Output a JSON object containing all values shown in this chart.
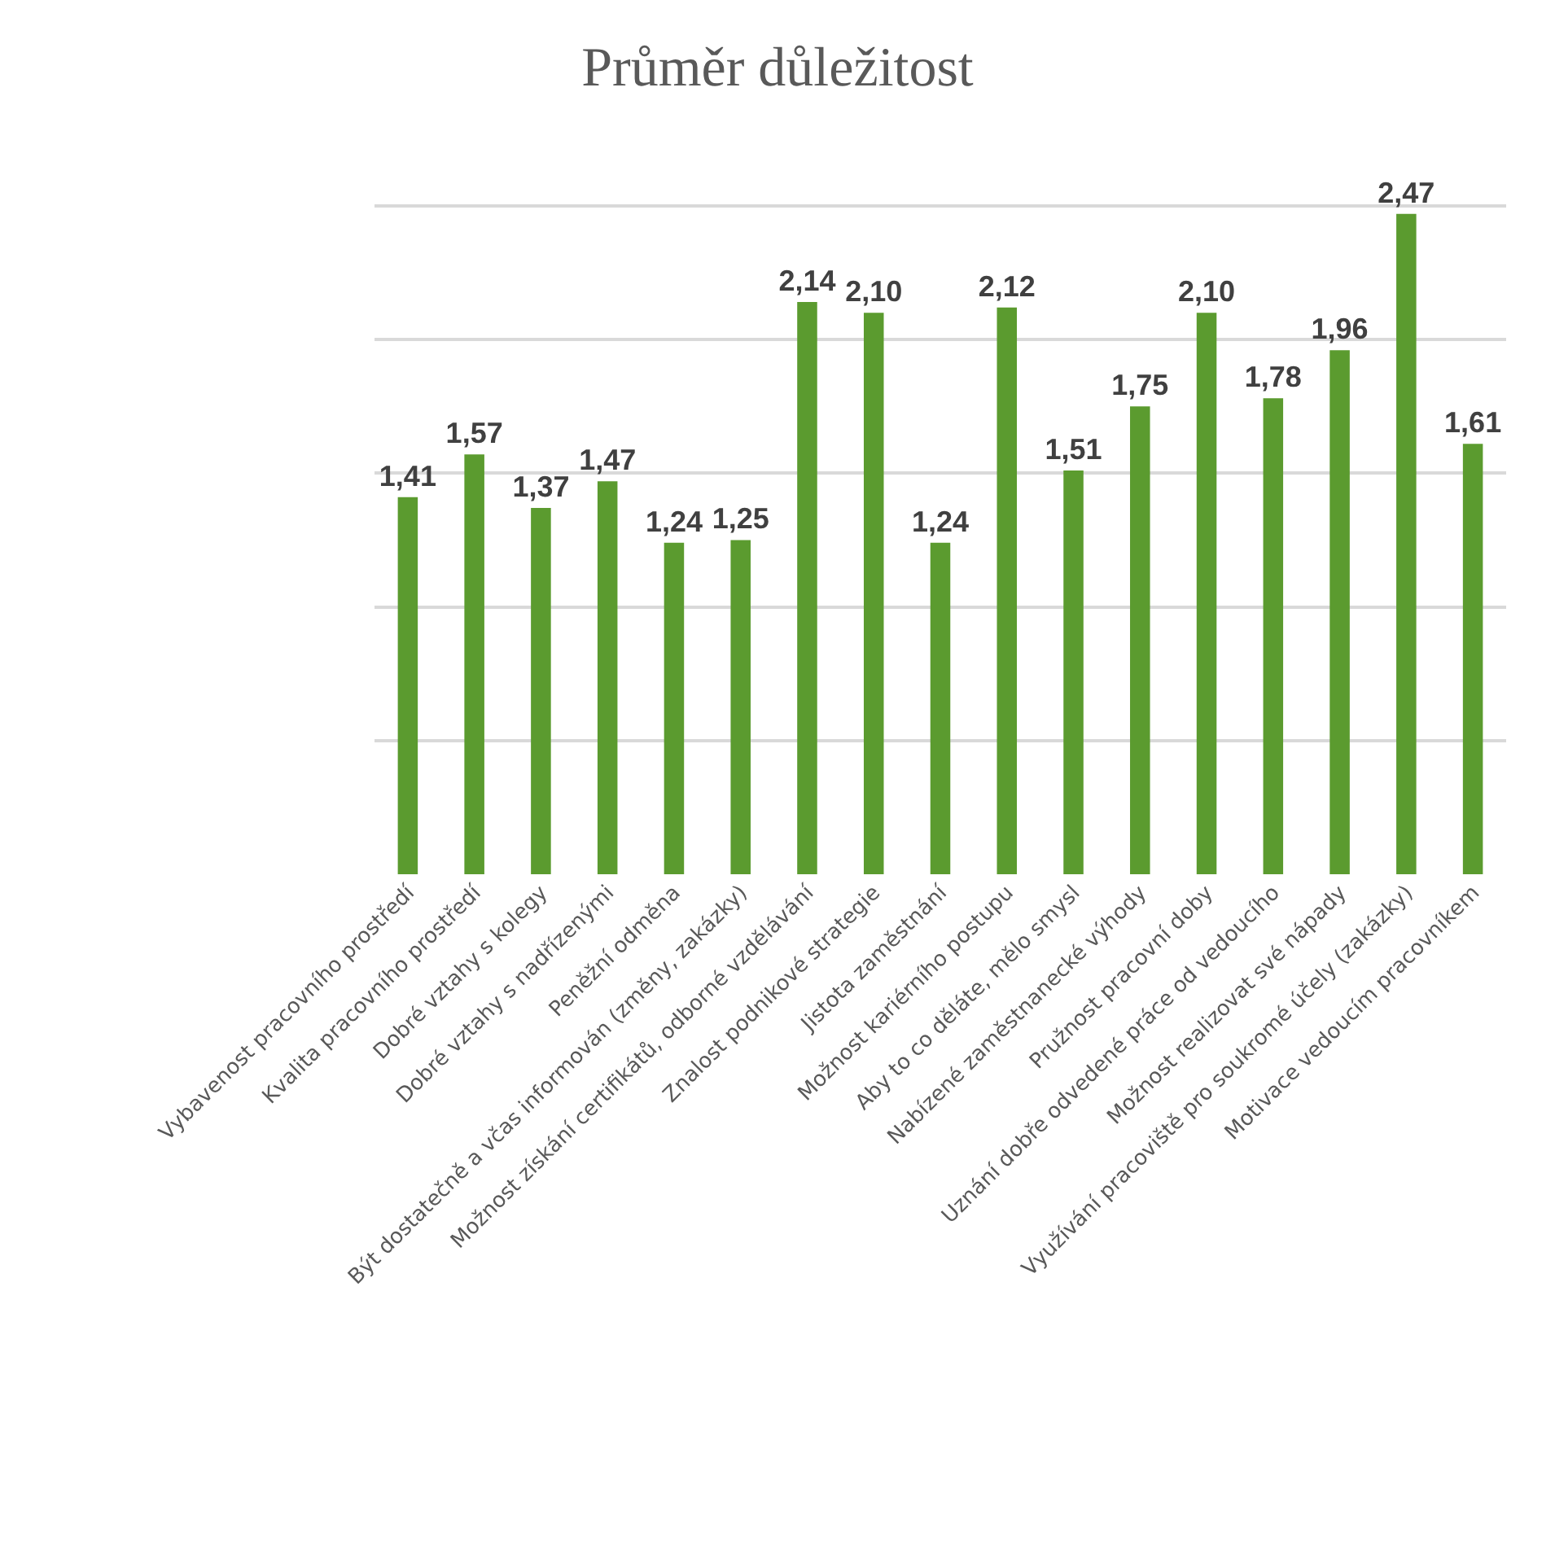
{
  "chart_data": {
    "type": "bar",
    "title": "Průměr důležitost",
    "categories": [
      "Vybavenost pracovního prostředí",
      "Kvalita pracovního prostředí",
      "Dobré vztahy s kolegy",
      "Dobré vztahy s nadřízenými",
      "Peněžní odměna",
      "Být dostatečně a včas informován (změny, zakázky)",
      "Možnost získání certifikátů, odborné vzdělávání",
      "Znalost podnikové strategie",
      "Jistota zaměstnání",
      "Možnost kariérního postupu",
      "Aby to co děláte, mělo smysl",
      "Nabízené zaměstnanecké výhody",
      "Pružnost pracovní doby",
      "Uznání dobře odvedené práce od vedoucího",
      "Možnost realizovat své nápady",
      "Využívání pracoviště pro soukromé účely (zakázky)",
      "Motivace vedoucím pracovníkem"
    ],
    "values": [
      1.41,
      1.57,
      1.37,
      1.47,
      1.24,
      1.25,
      2.14,
      2.1,
      1.24,
      2.12,
      1.51,
      1.75,
      2.1,
      1.78,
      1.96,
      2.47,
      1.61
    ],
    "value_labels": [
      "1,41",
      "1,57",
      "1,37",
      "1,47",
      "1,24",
      "1,25",
      "2,14",
      "2,10",
      "1,24",
      "2,12",
      "1,51",
      "1,75",
      "2,10",
      "1,78",
      "1,96",
      "2,47",
      "1,61"
    ],
    "color": "#5b9b2f",
    "grid": "y",
    "tick_labels": "x"
  }
}
